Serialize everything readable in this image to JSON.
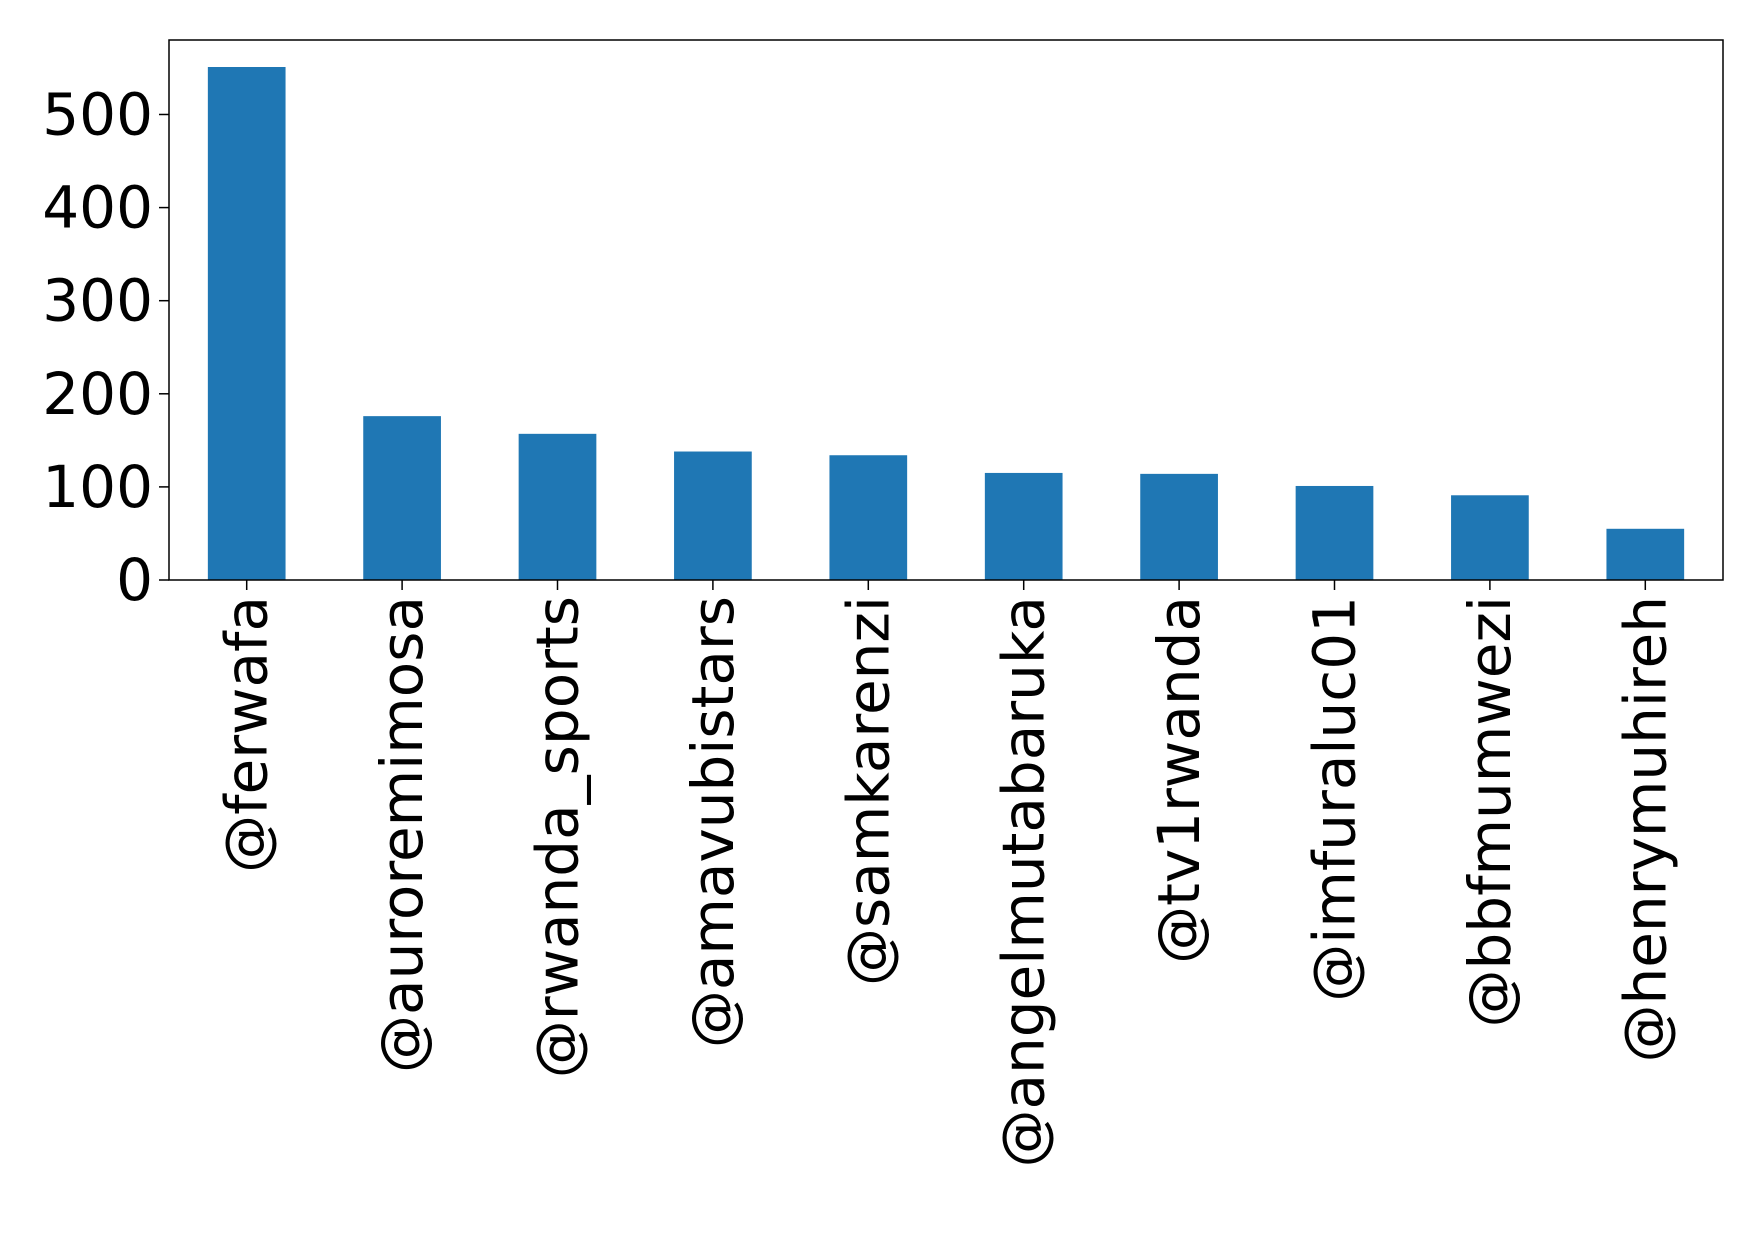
{
  "chart_data": {
    "type": "bar",
    "title": "",
    "xlabel": "",
    "ylabel": "",
    "categories": [
      "@ferwafa",
      "@auroremimosa",
      "@rwanda_sports",
      "@amavubistars",
      "@samkarenzi",
      "@angelmutabaruka",
      "@tv1rwanda",
      "@imfuraluc01",
      "@bbfmumwezi",
      "@henrymuhireh"
    ],
    "values": [
      551,
      176,
      157,
      138,
      134,
      115,
      114,
      101,
      91,
      55
    ],
    "ylim": [
      0,
      580
    ],
    "yticks": [
      0,
      100,
      200,
      300,
      400,
      500
    ],
    "ytick_labels": [
      "0",
      "100",
      "200",
      "300",
      "400",
      "500"
    ],
    "grid": false,
    "legend": "none",
    "bar_color": "#1f77b4"
  }
}
